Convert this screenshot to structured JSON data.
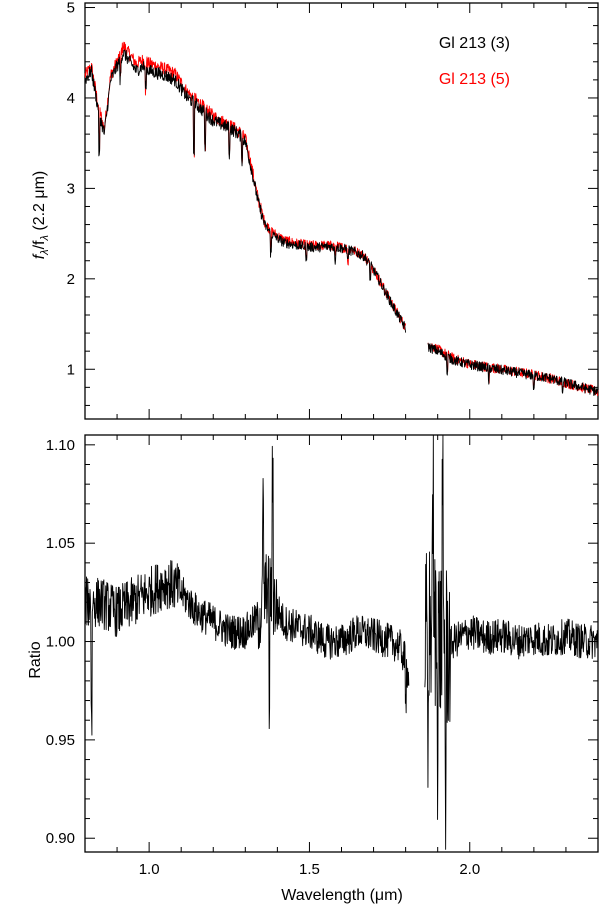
{
  "chart_data": [
    {
      "type": "line",
      "panel": "top",
      "title": "",
      "xlabel": "",
      "ylabel_main": "f",
      "ylabel_sub1": "λ",
      "ylabel_mid": "/f",
      "ylabel_sub2": "λ",
      "ylabel_tail": " (2.2 μm)",
      "xlim": [
        0.8,
        2.4
      ],
      "ylim": [
        0.45,
        5.05
      ],
      "yticks": [
        "1",
        "2",
        "3",
        "4",
        "5"
      ],
      "legend_position": "top-right",
      "series": [
        {
          "name": "Gl 213 (3)",
          "color": "#000000",
          "segments": [
            [
              [
                0.8,
                4.2
              ],
              [
                0.82,
                4.3
              ],
              [
                0.84,
                3.9
              ],
              [
                0.86,
                3.6
              ],
              [
                0.88,
                4.2
              ],
              [
                0.9,
                4.35
              ],
              [
                0.92,
                4.5
              ],
              [
                0.94,
                4.4
              ],
              [
                0.96,
                4.3
              ],
              [
                0.98,
                4.35
              ],
              [
                1.0,
                4.3
              ],
              [
                1.02,
                4.28
              ],
              [
                1.05,
                4.25
              ],
              [
                1.08,
                4.2
              ],
              [
                1.1,
                4.1
              ],
              [
                1.12,
                4.0
              ],
              [
                1.14,
                3.95
              ],
              [
                1.17,
                3.85
              ],
              [
                1.2,
                3.75
              ],
              [
                1.23,
                3.7
              ],
              [
                1.26,
                3.65
              ],
              [
                1.28,
                3.6
              ],
              [
                1.3,
                3.52
              ],
              [
                1.32,
                3.2
              ],
              [
                1.34,
                2.85
              ],
              [
                1.36,
                2.6
              ],
              [
                1.38,
                2.5
              ],
              [
                1.4,
                2.45
              ],
              [
                1.42,
                2.4
              ],
              [
                1.45,
                2.38
              ],
              [
                1.48,
                2.36
              ],
              [
                1.5,
                2.35
              ],
              [
                1.53,
                2.35
              ],
              [
                1.56,
                2.36
              ],
              [
                1.6,
                2.34
              ],
              [
                1.64,
                2.3
              ],
              [
                1.67,
                2.25
              ],
              [
                1.7,
                2.1
              ],
              [
                1.73,
                1.9
              ],
              [
                1.76,
                1.7
              ],
              [
                1.8,
                1.45
              ]
            ],
            [
              [
                1.87,
                1.25
              ],
              [
                1.9,
                1.2
              ],
              [
                1.95,
                1.1
              ],
              [
                2.0,
                1.05
              ],
              [
                2.05,
                1.02
              ],
              [
                2.1,
                0.99
              ],
              [
                2.15,
                0.96
              ],
              [
                2.2,
                0.93
              ],
              [
                2.25,
                0.9
              ],
              [
                2.3,
                0.85
              ],
              [
                2.35,
                0.8
              ],
              [
                2.4,
                0.75
              ]
            ]
          ]
        },
        {
          "name": "Gl 213 (5)",
          "color": "#ff0000",
          "segments": [
            [
              [
                0.8,
                4.25
              ],
              [
                0.82,
                4.35
              ],
              [
                0.84,
                3.95
              ],
              [
                0.86,
                3.65
              ],
              [
                0.88,
                4.25
              ],
              [
                0.9,
                4.4
              ],
              [
                0.92,
                4.58
              ],
              [
                0.94,
                4.48
              ],
              [
                0.96,
                4.38
              ],
              [
                0.98,
                4.42
              ],
              [
                1.0,
                4.38
              ],
              [
                1.02,
                4.36
              ],
              [
                1.05,
                4.32
              ],
              [
                1.08,
                4.27
              ],
              [
                1.1,
                4.17
              ],
              [
                1.12,
                4.06
              ],
              [
                1.14,
                4.0
              ],
              [
                1.17,
                3.9
              ],
              [
                1.2,
                3.8
              ],
              [
                1.23,
                3.74
              ],
              [
                1.26,
                3.68
              ],
              [
                1.28,
                3.63
              ],
              [
                1.3,
                3.55
              ],
              [
                1.32,
                3.23
              ],
              [
                1.34,
                2.88
              ],
              [
                1.36,
                2.63
              ],
              [
                1.38,
                2.53
              ],
              [
                1.4,
                2.48
              ],
              [
                1.42,
                2.43
              ],
              [
                1.45,
                2.4
              ],
              [
                1.48,
                2.38
              ],
              [
                1.5,
                2.37
              ],
              [
                1.53,
                2.37
              ],
              [
                1.56,
                2.37
              ],
              [
                1.6,
                2.35
              ],
              [
                1.64,
                2.31
              ],
              [
                1.67,
                2.26
              ],
              [
                1.7,
                2.11
              ],
              [
                1.73,
                1.91
              ],
              [
                1.76,
                1.71
              ],
              [
                1.8,
                1.46
              ]
            ],
            [
              [
                1.87,
                1.28
              ],
              [
                1.9,
                1.22
              ],
              [
                1.95,
                1.12
              ],
              [
                2.0,
                1.06
              ],
              [
                2.05,
                1.03
              ],
              [
                2.1,
                1.0
              ],
              [
                2.15,
                0.97
              ],
              [
                2.2,
                0.94
              ],
              [
                2.25,
                0.9
              ],
              [
                2.3,
                0.85
              ],
              [
                2.35,
                0.8
              ],
              [
                2.4,
                0.75
              ]
            ]
          ]
        }
      ],
      "legend": [
        {
          "label": "Gl 213 (3)",
          "color": "#000000"
        },
        {
          "label": "Gl 213 (5)",
          "color": "#ff0000"
        }
      ]
    },
    {
      "type": "line",
      "panel": "bottom",
      "title": "",
      "xlabel": "Wavelength (μm)",
      "ylabel": "Ratio",
      "xlim": [
        0.8,
        2.4
      ],
      "ylim": [
        0.893,
        1.105
      ],
      "yticks": [
        "0.90",
        "0.95",
        "1.00",
        "1.05",
        "1.10"
      ],
      "xticks": [
        "1.0",
        "1.5",
        "2.0"
      ],
      "series": [
        {
          "color": "#000000",
          "segments": [
            [
              [
                0.8,
                1.02
              ],
              [
                0.85,
                1.02
              ],
              [
                0.9,
                1.015
              ],
              [
                0.95,
                1.02
              ],
              [
                1.0,
                1.025
              ],
              [
                1.05,
                1.03
              ],
              [
                1.08,
                1.028
              ],
              [
                1.1,
                1.025
              ],
              [
                1.15,
                1.015
              ],
              [
                1.2,
                1.01
              ],
              [
                1.25,
                1.005
              ],
              [
                1.3,
                1.005
              ],
              [
                1.33,
                1.01
              ],
              [
                1.35,
                1.015
              ],
              [
                1.37,
                1.03
              ],
              [
                1.39,
                1.02
              ],
              [
                1.42,
                1.01
              ],
              [
                1.45,
                1.008
              ],
              [
                1.5,
                1.005
              ],
              [
                1.55,
                1.0
              ],
              [
                1.6,
                1.0
              ],
              [
                1.65,
                1.005
              ],
              [
                1.7,
                1.003
              ],
              [
                1.75,
                1.0
              ],
              [
                1.78,
                0.998
              ],
              [
                1.8,
                0.99
              ],
              [
                1.81,
                0.98
              ]
            ],
            [
              [
                1.86,
                1.0
              ],
              [
                1.88,
                1.01
              ],
              [
                1.9,
                1.005
              ],
              [
                1.92,
                0.995
              ],
              [
                1.95,
                1.0
              ],
              [
                2.0,
                1.005
              ],
              [
                2.05,
                1.002
              ],
              [
                2.1,
                1.003
              ],
              [
                2.15,
                1.0
              ],
              [
                2.2,
                1.002
              ],
              [
                2.25,
                1.0
              ],
              [
                2.3,
                1.003
              ],
              [
                2.35,
                1.0
              ],
              [
                2.4,
                1.0
              ]
            ]
          ]
        }
      ]
    }
  ]
}
